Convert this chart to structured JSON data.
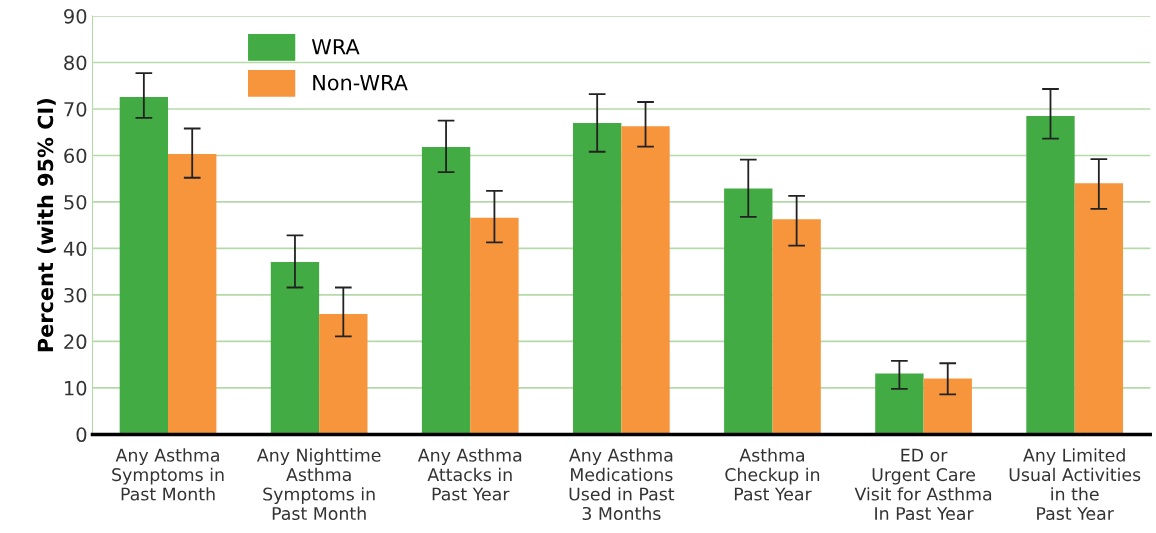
{
  "chart_data": {
    "type": "bar",
    "ylabel": "Percent (with 95% CI)",
    "categories": [
      "Any Asthma\nSymptoms in\nPast Month",
      "Any Nighttime\nAsthma\nSymptoms in\nPast Month",
      "Any Asthma\nAttacks in\nPast Year",
      "Any Asthma\nMedications\nUsed in Past\n3 Months",
      "Asthma\nCheckup in\nPast Year",
      "ED or\nUrgent Care\nVisit for Asthma\nIn Past Year",
      "Any Limited\nUsual Activities\nin the\nPast Year"
    ],
    "series": [
      {
        "name": "WRA",
        "color": "#43ab43",
        "values": [
          72.6,
          37.1,
          61.8,
          67.0,
          52.9,
          13.1,
          68.5
        ],
        "errors": [
          [
            68.1,
            77.7
          ],
          [
            31.6,
            42.8
          ],
          [
            56.4,
            67.5
          ],
          [
            60.8,
            73.2
          ],
          [
            46.8,
            59.1
          ],
          [
            9.8,
            15.8
          ],
          [
            63.6,
            74.3
          ]
        ]
      },
      {
        "name": "Non-WRA",
        "color": "#f6953b",
        "values": [
          60.3,
          25.9,
          46.6,
          66.3,
          46.3,
          12.0,
          54.0
        ],
        "errors": [
          [
            55.2,
            65.8
          ],
          [
            21.1,
            31.6
          ],
          [
            41.3,
            52.4
          ],
          [
            61.9,
            71.5
          ],
          [
            40.6,
            51.3
          ],
          [
            8.6,
            15.3
          ],
          [
            48.5,
            59.2
          ]
        ]
      }
    ],
    "ylim": [
      0,
      90
    ],
    "yticks": [
      0,
      10,
      20,
      30,
      40,
      50,
      60,
      70,
      80,
      90
    ],
    "grid": "y",
    "legend": "top left"
  }
}
